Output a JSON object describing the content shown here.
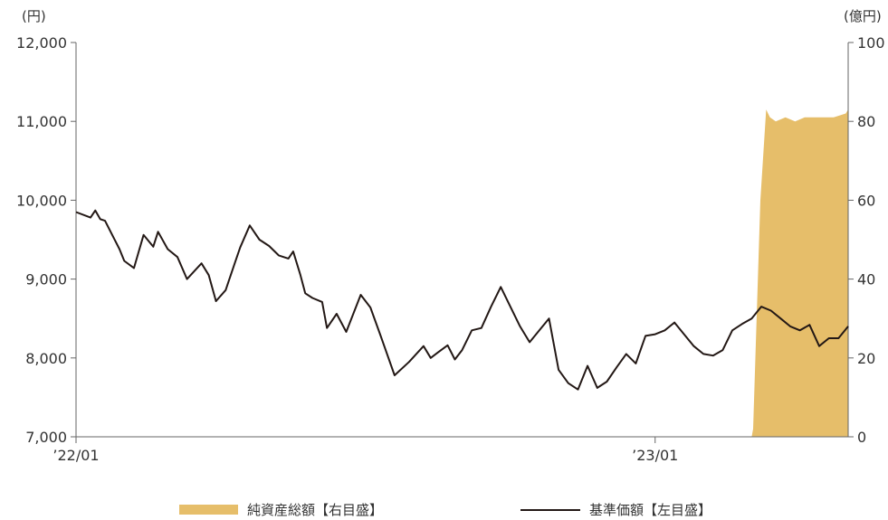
{
  "chart_data": {
    "type": "line+area",
    "left_axis": {
      "unit": "(円)",
      "ylim": [
        7000,
        12000
      ],
      "ticks": [
        "7,000",
        "8,000",
        "9,000",
        "10,000",
        "11,000",
        "12,000"
      ],
      "tick_values": [
        7000,
        8000,
        9000,
        10000,
        11000,
        12000
      ]
    },
    "right_axis": {
      "unit": "(億円)",
      "ylim": [
        0,
        100
      ],
      "ticks": [
        "0",
        "20",
        "40",
        "60",
        "80",
        "100"
      ],
      "tick_values": [
        0,
        20,
        40,
        60,
        80,
        100
      ]
    },
    "x_axis": {
      "start": "2022-01",
      "end": "2023-04",
      "ticks": [
        "’22/01",
        "’23/01"
      ],
      "tick_positions": [
        0,
        12
      ]
    },
    "legend_placement": "bottom",
    "series": [
      {
        "name": "純資産総額【右目盛】",
        "type": "area",
        "axis": "right",
        "color": "#E6BE6A",
        "x_months": [
          0,
          14.0,
          14.03,
          14.18,
          14.3,
          14.38,
          14.5,
          14.7,
          14.9,
          15.1,
          15.3,
          15.5,
          15.7,
          15.95,
          16.0
        ],
        "values": [
          0,
          0,
          2,
          60,
          83,
          81,
          80,
          81,
          80,
          81,
          81,
          81,
          81,
          82,
          83
        ]
      },
      {
        "name": "基準価額【左目盛】",
        "type": "line",
        "axis": "left",
        "color": "#231815",
        "x_months": [
          0.0,
          0.3,
          0.4,
          0.5,
          0.6,
          0.9,
          1.0,
          1.2,
          1.4,
          1.6,
          1.7,
          1.9,
          2.1,
          2.3,
          2.6,
          2.75,
          2.9,
          3.1,
          3.3,
          3.4,
          3.6,
          3.8,
          4.0,
          4.2,
          4.4,
          4.5,
          4.65,
          4.75,
          4.9,
          5.1,
          5.2,
          5.4,
          5.6,
          5.9,
          6.1,
          6.3,
          6.6,
          6.9,
          7.2,
          7.35,
          7.5,
          7.7,
          7.85,
          8.0,
          8.2,
          8.4,
          8.6,
          8.8,
          9.0,
          9.2,
          9.4,
          9.6,
          9.8,
          10.0,
          10.2,
          10.4,
          10.6,
          10.8,
          11.0,
          11.2,
          11.4,
          11.6,
          11.8,
          12.0,
          12.2,
          12.4,
          12.6,
          12.8,
          13.0,
          13.2,
          13.4,
          13.6,
          13.8,
          14.0,
          14.2,
          14.4,
          14.6,
          14.8,
          15.0,
          15.2,
          15.4,
          15.6,
          15.8,
          16.0
        ],
        "values": [
          9850,
          9780,
          9870,
          9760,
          9740,
          9380,
          9230,
          9140,
          9560,
          9410,
          9600,
          9380,
          9280,
          9000,
          9200,
          9050,
          8720,
          8860,
          9220,
          9400,
          9680,
          9500,
          9420,
          9300,
          9260,
          9350,
          9050,
          8820,
          8760,
          8710,
          8380,
          8560,
          8330,
          8800,
          8640,
          8300,
          7780,
          7950,
          8150,
          8000,
          8070,
          8160,
          7980,
          8100,
          8350,
          8380,
          8650,
          8900,
          8650,
          8400,
          8200,
          8350,
          8500,
          7850,
          7680,
          7600,
          7900,
          7620,
          7700,
          7880,
          8050,
          7930,
          8280,
          8300,
          8350,
          8450,
          8300,
          8150,
          8050,
          8030,
          8100,
          8350,
          8430,
          8500,
          8650,
          8600,
          8500,
          8400,
          8350,
          8420,
          8150,
          8250,
          8250,
          8400
        ]
      }
    ]
  }
}
